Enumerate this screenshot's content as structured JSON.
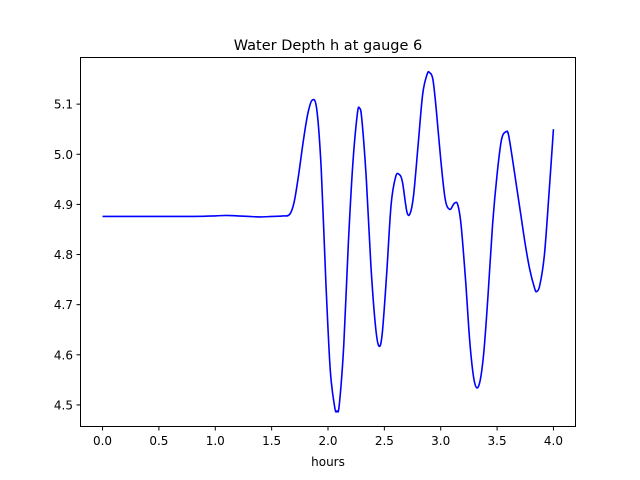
{
  "chart_data": {
    "type": "line",
    "title": "Water Depth h at gauge 6",
    "xlabel": "hours",
    "ylabel": "",
    "xlim": [
      -0.2,
      4.2
    ],
    "ylim": [
      4.456,
      5.194
    ],
    "xticks": [
      0.0,
      0.5,
      1.0,
      1.5,
      2.0,
      2.5,
      3.0,
      3.5,
      4.0
    ],
    "xtick_labels": [
      "0.0",
      "0.5",
      "1.0",
      "1.5",
      "2.0",
      "2.5",
      "3.0",
      "3.5",
      "4.0"
    ],
    "yticks": [
      4.5,
      4.6,
      4.7,
      4.8,
      4.9,
      5.0,
      5.1
    ],
    "ytick_labels": [
      "4.5",
      "4.6",
      "4.7",
      "4.8",
      "4.9",
      "5.0",
      "5.1"
    ],
    "grid": false,
    "series": [
      {
        "color": "#0000ff",
        "x": [
          0.0,
          0.2,
          0.4,
          0.6,
          0.8,
          1.0,
          1.1,
          1.2,
          1.3,
          1.4,
          1.5,
          1.6,
          1.66,
          1.7,
          1.74,
          1.78,
          1.82,
          1.86,
          1.9,
          1.94,
          1.98,
          2.02,
          2.06,
          2.08,
          2.1,
          2.14,
          2.18,
          2.22,
          2.26,
          2.28,
          2.3,
          2.34,
          2.38,
          2.42,
          2.45,
          2.48,
          2.52,
          2.56,
          2.6,
          2.63,
          2.66,
          2.7,
          2.73,
          2.76,
          2.8,
          2.84,
          2.88,
          2.9,
          2.93,
          2.96,
          3.0,
          3.04,
          3.08,
          3.12,
          3.15,
          3.18,
          3.22,
          3.26,
          3.3,
          3.34,
          3.38,
          3.42,
          3.46,
          3.5,
          3.54,
          3.58,
          3.6,
          3.63,
          3.67,
          3.71,
          3.75,
          3.79,
          3.83,
          3.85,
          3.88,
          3.92,
          3.96,
          4.0
        ],
        "y": [
          4.876,
          4.876,
          4.876,
          4.876,
          4.876,
          4.877,
          4.878,
          4.877,
          4.876,
          4.875,
          4.876,
          4.877,
          4.88,
          4.905,
          4.96,
          5.025,
          5.08,
          5.108,
          5.09,
          4.97,
          4.75,
          4.57,
          4.495,
          4.488,
          4.5,
          4.62,
          4.82,
          4.98,
          5.08,
          5.092,
          5.07,
          4.95,
          4.78,
          4.66,
          4.618,
          4.64,
          4.76,
          4.9,
          4.955,
          4.96,
          4.945,
          4.885,
          4.883,
          4.92,
          5.02,
          5.12,
          5.16,
          5.163,
          5.15,
          5.09,
          4.99,
          4.91,
          4.89,
          4.902,
          4.9,
          4.86,
          4.75,
          4.62,
          4.545,
          4.54,
          4.6,
          4.72,
          4.86,
          4.96,
          5.03,
          5.045,
          5.04,
          5.0,
          4.94,
          4.88,
          4.82,
          4.77,
          4.735,
          4.726,
          4.74,
          4.8,
          4.92,
          5.05
        ]
      }
    ]
  }
}
